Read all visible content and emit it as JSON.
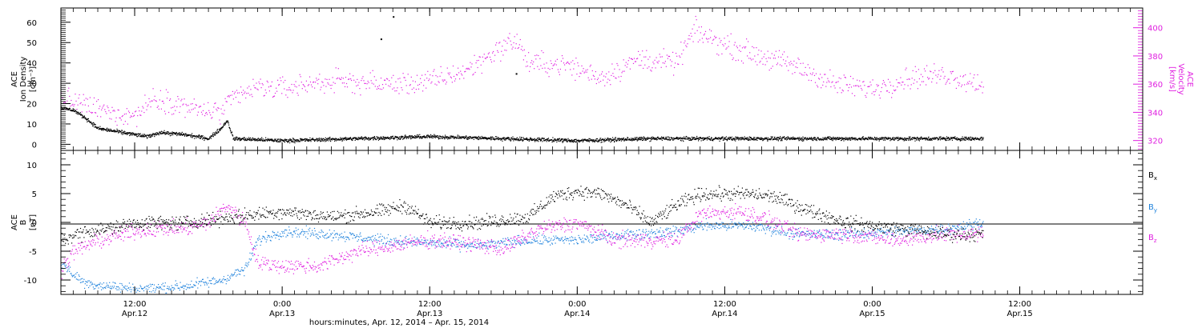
{
  "chart_data": [
    {
      "type": "scatter",
      "panel": "top",
      "ylabel_left": [
        "ACE",
        "Ion Density",
        "[cm⁻³]"
      ],
      "ylabel_right": [
        "ACE",
        "Velocity",
        "[km/s]"
      ],
      "ylim_left": [
        -3,
        67
      ],
      "ylim_right": [
        313,
        414
      ],
      "left_ticks": [
        "0",
        "10",
        "20",
        "30",
        "40",
        "50",
        "60"
      ],
      "right_ticks": [
        "320",
        "340",
        "360",
        "380",
        "400"
      ],
      "grid": false,
      "series": [
        {
          "name": "",
          "axis": "left",
          "color": "#000000",
          "keypoints": [
            [
              "2014-04-12T06:00",
              18
            ],
            [
              "2014-04-12T07:00",
              17
            ],
            [
              "2014-04-12T08:00",
              13
            ],
            [
              "2014-04-12T09:00",
              8
            ],
            [
              "2014-04-12T11:00",
              6
            ],
            [
              "2014-04-12T13:00",
              4
            ],
            [
              "2014-04-12T14:00",
              6
            ],
            [
              "2014-04-12T16:00",
              5
            ],
            [
              "2014-04-12T18:00",
              3
            ],
            [
              "2014-04-12T19:00",
              8
            ],
            [
              "2014-04-12T19:30",
              12
            ],
            [
              "2014-04-12T20:00",
              3
            ],
            [
              "2014-04-13T00:00",
              2
            ],
            [
              "2014-04-13T06:00",
              3
            ],
            [
              "2014-04-13T12:00",
              4
            ],
            [
              "2014-04-13T18:00",
              3
            ],
            [
              "2014-04-14T00:00",
              2
            ],
            [
              "2014-04-14T06:00",
              3
            ],
            [
              "2014-04-14T12:00",
              3
            ],
            [
              "2014-04-14T18:00",
              3
            ],
            [
              "2014-04-15T00:00",
              3
            ],
            [
              "2014-04-15T06:00",
              3
            ],
            [
              "2014-04-15T09:00",
              3
            ]
          ],
          "outliers": [
            [
              "2014-04-13T09:00",
              63
            ],
            [
              "2014-04-13T08:00",
              52
            ],
            [
              "2014-04-13T19:00",
              35
            ]
          ]
        },
        {
          "name": "",
          "axis": "right",
          "color": "#e020e0",
          "keypoints": [
            [
              "2014-04-12T06:00",
              350
            ],
            [
              "2014-04-12T08:00",
              345
            ],
            [
              "2014-04-12T10:00",
              340
            ],
            [
              "2014-04-12T12:00",
              338
            ],
            [
              "2014-04-12T13:30",
              350
            ],
            [
              "2014-04-12T15:00",
              348
            ],
            [
              "2014-04-12T17:00",
              342
            ],
            [
              "2014-04-12T19:00",
              340
            ],
            [
              "2014-04-12T20:00",
              350
            ],
            [
              "2014-04-12T22:00",
              358
            ],
            [
              "2014-04-13T00:00",
              357
            ],
            [
              "2014-04-13T03:00",
              362
            ],
            [
              "2014-04-13T06:00",
              362
            ],
            [
              "2014-04-13T09:00",
              360
            ],
            [
              "2014-04-13T12:00",
              362
            ],
            [
              "2014-04-13T15:00",
              370
            ],
            [
              "2014-04-13T17:00",
              382
            ],
            [
              "2014-04-13T19:00",
              392
            ],
            [
              "2014-04-13T20:00",
              375
            ],
            [
              "2014-04-13T23:00",
              374
            ],
            [
              "2014-04-14T02:00",
              365
            ],
            [
              "2014-04-14T05:00",
              378
            ],
            [
              "2014-04-14T08:00",
              375
            ],
            [
              "2014-04-14T09:30",
              398
            ],
            [
              "2014-04-14T12:00",
              388
            ],
            [
              "2014-04-14T15:00",
              380
            ],
            [
              "2014-04-14T18:00",
              372
            ],
            [
              "2014-04-14T21:00",
              360
            ],
            [
              "2014-04-15T00:00",
              357
            ],
            [
              "2014-04-15T03:00",
              365
            ],
            [
              "2014-04-15T06:00",
              367
            ],
            [
              "2014-04-15T09:00",
              360
            ]
          ]
        }
      ]
    },
    {
      "type": "scatter",
      "panel": "bottom",
      "ylabel": [
        "ACE",
        "B",
        "[nT]"
      ],
      "ylim": [
        -12.5,
        12.5
      ],
      "ticks": [
        "10",
        "5",
        "0",
        "-5",
        "-10"
      ],
      "zero_line": true,
      "grid": false,
      "legend_placement": "right",
      "series": [
        {
          "name": "Bx",
          "label_main": "B",
          "label_sub": "x",
          "color": "#000000",
          "keypoints": [
            [
              "2014-04-12T06:00",
              -3
            ],
            [
              "2014-04-12T08:00",
              -1.5
            ],
            [
              "2014-04-12T10:00",
              -1
            ],
            [
              "2014-04-12T12:00",
              0
            ],
            [
              "2014-04-12T16:00",
              0
            ],
            [
              "2014-04-12T20:00",
              1
            ],
            [
              "2014-04-13T00:00",
              2
            ],
            [
              "2014-04-13T04:00",
              1
            ],
            [
              "2014-04-13T08:00",
              2
            ],
            [
              "2014-04-13T10:00",
              3
            ],
            [
              "2014-04-13T12:00",
              0
            ],
            [
              "2014-04-13T16:00",
              0
            ],
            [
              "2014-04-13T20:00",
              1
            ],
            [
              "2014-04-13T22:00",
              4.5
            ],
            [
              "2014-04-14T00:00",
              5.5
            ],
            [
              "2014-04-14T02:00",
              5
            ],
            [
              "2014-04-14T04:00",
              3
            ],
            [
              "2014-04-14T06:00",
              0
            ],
            [
              "2014-04-14T08:00",
              3
            ],
            [
              "2014-04-14T10:00",
              5
            ],
            [
              "2014-04-14T14:00",
              5
            ],
            [
              "2014-04-14T16:00",
              4.5
            ],
            [
              "2014-04-14T19:00",
              2
            ],
            [
              "2014-04-14T22:00",
              0
            ],
            [
              "2014-04-15T02:00",
              -1
            ],
            [
              "2014-04-15T06:00",
              -2
            ],
            [
              "2014-04-15T09:00",
              -2
            ]
          ]
        },
        {
          "name": "By",
          "label_main": "B",
          "label_sub": "y",
          "color": "#1e82dc",
          "keypoints": [
            [
              "2014-04-12T06:00",
              -7
            ],
            [
              "2014-04-12T07:00",
              -9
            ],
            [
              "2014-04-12T08:00",
              -10.5
            ],
            [
              "2014-04-12T10:00",
              -11
            ],
            [
              "2014-04-12T12:00",
              -11.5
            ],
            [
              "2014-04-12T16:00",
              -11
            ],
            [
              "2014-04-12T19:00",
              -10
            ],
            [
              "2014-04-12T21:00",
              -8
            ],
            [
              "2014-04-12T22:00",
              -3
            ],
            [
              "2014-04-13T00:00",
              -1.5
            ],
            [
              "2014-04-13T04:00",
              -2
            ],
            [
              "2014-04-13T08:00",
              -3
            ],
            [
              "2014-04-13T12:00",
              -3.5
            ],
            [
              "2014-04-13T16:00",
              -4
            ],
            [
              "2014-04-13T20:00",
              -3
            ],
            [
              "2014-04-14T00:00",
              -3
            ],
            [
              "2014-04-14T04:00",
              -2
            ],
            [
              "2014-04-14T08:00",
              -1.5
            ],
            [
              "2014-04-14T10:00",
              -0.5
            ],
            [
              "2014-04-14T14:00",
              -0.5
            ],
            [
              "2014-04-14T18:00",
              -2
            ],
            [
              "2014-04-14T22:00",
              -2
            ],
            [
              "2014-04-15T02:00",
              -1.5
            ],
            [
              "2014-04-15T06:00",
              -1
            ],
            [
              "2014-04-15T09:00",
              0
            ]
          ]
        },
        {
          "name": "Bz",
          "label_main": "B",
          "label_sub": "z",
          "color": "#e020e0",
          "keypoints": [
            [
              "2014-04-12T06:00",
              -8
            ],
            [
              "2014-04-12T07:00",
              -5
            ],
            [
              "2014-04-12T09:00",
              -3
            ],
            [
              "2014-04-12T12:00",
              -1.5
            ],
            [
              "2014-04-12T14:00",
              -1
            ],
            [
              "2014-04-12T16:00",
              -1
            ],
            [
              "2014-04-12T18:00",
              0
            ],
            [
              "2014-04-12T19:30",
              3
            ],
            [
              "2014-04-12T21:00",
              0
            ],
            [
              "2014-04-12T22:00",
              -7
            ],
            [
              "2014-04-13T00:00",
              -7.5
            ],
            [
              "2014-04-13T03:00",
              -7.5
            ],
            [
              "2014-04-13T06:00",
              -5
            ],
            [
              "2014-04-13T09:00",
              -4
            ],
            [
              "2014-04-13T12:00",
              -3
            ],
            [
              "2014-04-13T15:00",
              -3.5
            ],
            [
              "2014-04-13T18:00",
              -4.5
            ],
            [
              "2014-04-13T21:00",
              -1
            ],
            [
              "2014-04-14T00:00",
              0
            ],
            [
              "2014-04-14T03:00",
              -3
            ],
            [
              "2014-04-14T06:00",
              -3
            ],
            [
              "2014-04-14T08:00",
              -3
            ],
            [
              "2014-04-14T10:00",
              1.5
            ],
            [
              "2014-04-14T13:00",
              2
            ],
            [
              "2014-04-14T15:00",
              1
            ],
            [
              "2014-04-14T18:00",
              -2
            ],
            [
              "2014-04-14T22:00",
              -2
            ],
            [
              "2014-04-15T02:00",
              -3
            ],
            [
              "2014-04-15T06:00",
              -2
            ],
            [
              "2014-04-15T09:00",
              -2
            ]
          ]
        }
      ]
    }
  ],
  "xaxis": {
    "range": [
      "2014-04-12T06:00",
      "2014-04-15T22:00"
    ],
    "ticks": [
      {
        "time": "2014-04-12T12:00",
        "label": "12:00",
        "sublabel": "Apr.12"
      },
      {
        "time": "2014-04-13T00:00",
        "label": "0:00",
        "sublabel": "Apr.13"
      },
      {
        "time": "2014-04-13T12:00",
        "label": "12:00",
        "sublabel": "Apr.13"
      },
      {
        "time": "2014-04-14T00:00",
        "label": "0:00",
        "sublabel": "Apr.14"
      },
      {
        "time": "2014-04-14T12:00",
        "label": "12:00",
        "sublabel": "Apr.14"
      },
      {
        "time": "2014-04-15T00:00",
        "label": "0:00",
        "sublabel": "Apr.15"
      },
      {
        "time": "2014-04-15T12:00",
        "label": "12:00",
        "sublabel": "Apr.15"
      }
    ],
    "label": "hours:minutes, Apr. 12, 2014 – Apr. 15, 2014"
  }
}
